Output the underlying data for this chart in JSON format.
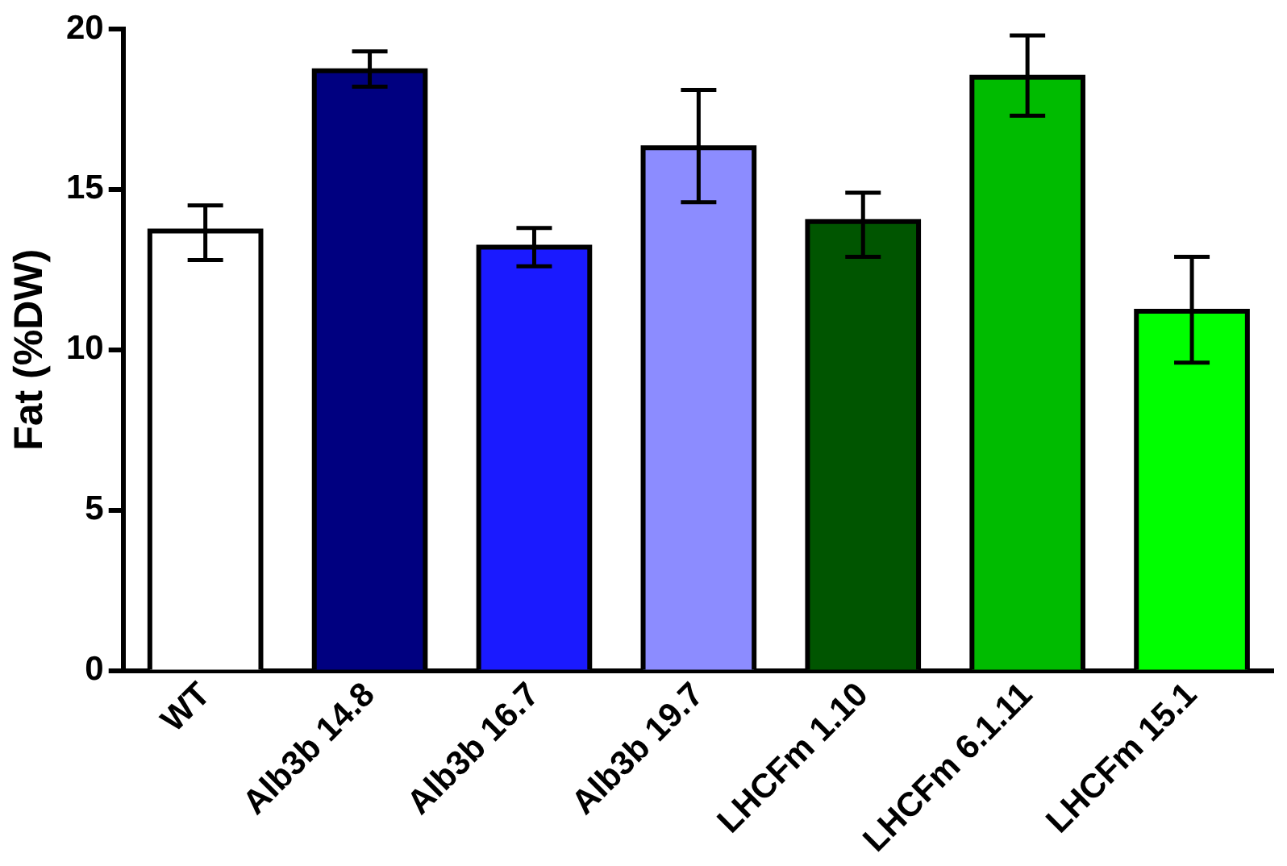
{
  "chart_data": {
    "type": "bar",
    "ylabel": "Fat (%DW)",
    "categories": [
      "WT",
      "Alb3b 14.8",
      "Alb3b 16.7",
      "Alb3b 19.7",
      "LHCFm 1.10",
      "LHCFm 6.1.11",
      "LHCFm 15.1"
    ],
    "values": [
      13.7,
      18.7,
      13.2,
      16.3,
      14.0,
      18.5,
      11.2
    ],
    "colors": [
      "#ffffff",
      "#000080",
      "#1a1aff",
      "#8c8cff",
      "#005500",
      "#00bb00",
      "#00ff00"
    ],
    "errors": [
      [
        12.8,
        14.5
      ],
      [
        18.2,
        19.3
      ],
      [
        12.6,
        13.8
      ],
      [
        14.6,
        18.1
      ],
      [
        12.9,
        14.9
      ],
      [
        17.3,
        19.8
      ],
      [
        9.6,
        12.9
      ]
    ],
    "ylim": [
      0,
      20
    ],
    "yticks": [
      0,
      5,
      10,
      15,
      20
    ],
    "grid": false,
    "legend": false
  }
}
